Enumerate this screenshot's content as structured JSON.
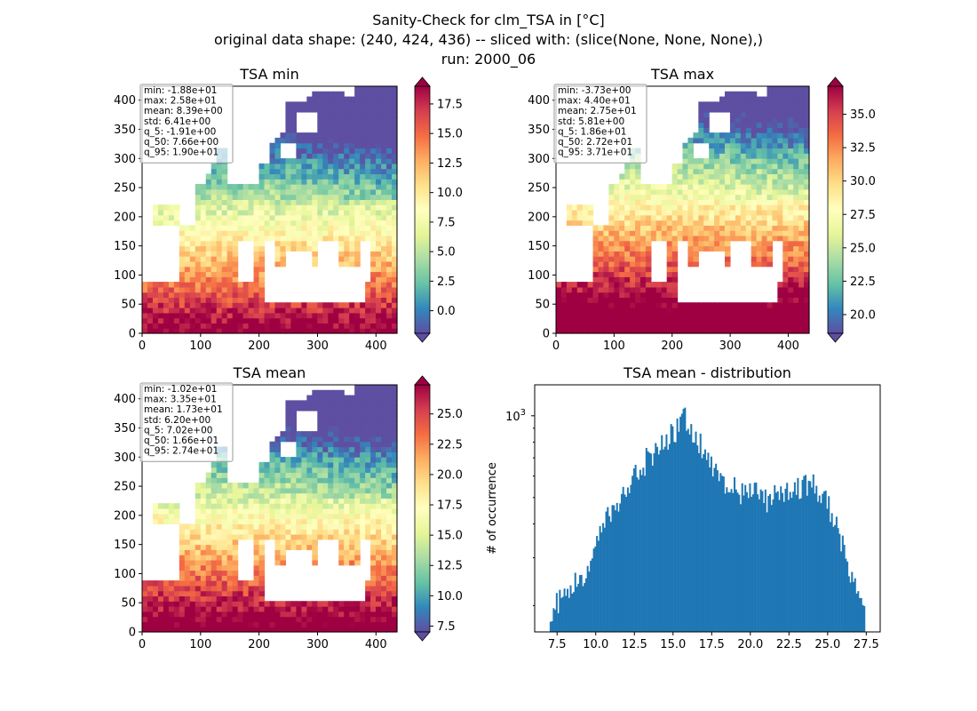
{
  "suptitle": {
    "line1": "Sanity-Check for clm_TSA in [°C]",
    "line2": "original data shape: (240, 424, 436) -- sliced with: (slice(None, None, None),)",
    "line3": "run: 2000_06"
  },
  "colors": {
    "histogram_bar": "#1f77b4",
    "colormap": "Spectral_r",
    "colormap_stops": [
      "#5e4fa2",
      "#3288bd",
      "#66c2a5",
      "#abdda4",
      "#e6f598",
      "#ffffbf",
      "#fee08b",
      "#fdae61",
      "#f46d43",
      "#d53e4f",
      "#9e0142"
    ],
    "masked": "#ffffff"
  },
  "chart_data": [
    {
      "type": "heatmap",
      "id": "tsa_min",
      "title": "TSA min",
      "xlim": [
        0,
        436
      ],
      "ylim": [
        0,
        424
      ],
      "xticks": [
        0,
        100,
        200,
        300,
        400
      ],
      "yticks": [
        0,
        50,
        100,
        150,
        200,
        250,
        300,
        350,
        400
      ],
      "colorbar": {
        "vmin": -1.91,
        "vmax": 19.0,
        "ticks": [
          0.0,
          2.5,
          5.0,
          7.5,
          10.0,
          12.5,
          15.0,
          17.5
        ],
        "tick_labels": [
          "0.0",
          "2.5",
          "5.0",
          "7.5",
          "10.0",
          "12.5",
          "15.0",
          "17.5"
        ],
        "extend": "both"
      },
      "stats": [
        "min: -1.88e+01",
        "max: 2.58e+01",
        "mean: 8.39e+00",
        "std: 6.41e+00",
        "q_5: -1.91e+00",
        "q_50: 7.66e+00",
        "q_95: 1.90e+01"
      ]
    },
    {
      "type": "heatmap",
      "id": "tsa_max",
      "title": "TSA max",
      "xlim": [
        0,
        436
      ],
      "ylim": [
        0,
        424
      ],
      "xticks": [
        0,
        100,
        200,
        300,
        400
      ],
      "yticks": [
        0,
        50,
        100,
        150,
        200,
        250,
        300,
        350,
        400
      ],
      "colorbar": {
        "vmin": 18.6,
        "vmax": 37.1,
        "ticks": [
          20.0,
          22.5,
          25.0,
          27.5,
          30.0,
          32.5,
          35.0
        ],
        "tick_labels": [
          "20.0",
          "22.5",
          "25.0",
          "27.5",
          "30.0",
          "32.5",
          "35.0"
        ],
        "extend": "both"
      },
      "stats": [
        "min: -3.73e+00",
        "max: 4.40e+01",
        "mean: 2.75e+01",
        "std: 5.81e+00",
        "q_5: 1.86e+01",
        "q_50: 2.72e+01",
        "q_95: 3.71e+01"
      ]
    },
    {
      "type": "heatmap",
      "id": "tsa_mean",
      "title": "TSA mean",
      "xlim": [
        0,
        436
      ],
      "ylim": [
        0,
        424
      ],
      "xticks": [
        0,
        100,
        200,
        300,
        400
      ],
      "yticks": [
        0,
        50,
        100,
        150,
        200,
        250,
        300,
        350,
        400
      ],
      "colorbar": {
        "vmin": 7.02,
        "vmax": 27.4,
        "ticks": [
          7.5,
          10.0,
          12.5,
          15.0,
          17.5,
          20.0,
          22.5,
          25.0
        ],
        "tick_labels": [
          "7.5",
          "10.0",
          "12.5",
          "15.0",
          "17.5",
          "20.0",
          "22.5",
          "25.0"
        ],
        "extend": "both"
      },
      "stats": [
        "min: -1.02e+01",
        "max: 3.35e+01",
        "mean: 1.73e+01",
        "std: 6.20e+00",
        "q_5: 7.02e+00",
        "q_50: 1.66e+01",
        "q_95: 2.74e+01"
      ]
    },
    {
      "type": "bar",
      "id": "tsa_mean_distribution",
      "title": "TSA mean - distribution",
      "ylabel": "# of occurrence",
      "xlabel": "",
      "yscale": "log",
      "ylim": [
        160,
        1300
      ],
      "xlim": [
        6.05,
        28.4
      ],
      "xticks": [
        7.5,
        10.0,
        12.5,
        15.0,
        17.5,
        20.0,
        22.5,
        25.0,
        27.5
      ],
      "xtick_labels": [
        "7.5",
        "10.0",
        "12.5",
        "15.0",
        "17.5",
        "20.0",
        "22.5",
        "25.0",
        "27.5"
      ],
      "ytick_labels": [
        "10^3"
      ],
      "bin_range": [
        7.02,
        27.4
      ],
      "bin_width": 0.1,
      "histogram_envelope": [
        [
          7.05,
          185
        ],
        [
          7.3,
          200
        ],
        [
          7.6,
          210
        ],
        [
          8.0,
          225
        ],
        [
          8.5,
          240
        ],
        [
          9.0,
          255
        ],
        [
          9.5,
          270
        ],
        [
          10.0,
          320
        ],
        [
          10.5,
          390
        ],
        [
          11.0,
          460
        ],
        [
          11.5,
          500
        ],
        [
          12.0,
          560
        ],
        [
          12.5,
          610
        ],
        [
          13.0,
          660
        ],
        [
          13.5,
          720
        ],
        [
          14.0,
          760
        ],
        [
          14.5,
          830
        ],
        [
          15.0,
          860
        ],
        [
          15.5,
          940
        ],
        [
          15.8,
          990
        ],
        [
          16.0,
          930
        ],
        [
          16.5,
          860
        ],
        [
          17.0,
          750
        ],
        [
          17.5,
          660
        ],
        [
          18.0,
          600
        ],
        [
          18.5,
          560
        ],
        [
          19.0,
          540
        ],
        [
          19.5,
          530
        ],
        [
          20.0,
          540
        ],
        [
          20.5,
          510
        ],
        [
          21.0,
          490
        ],
        [
          21.5,
          505
        ],
        [
          22.0,
          520
        ],
        [
          22.5,
          530
        ],
        [
          23.0,
          545
        ],
        [
          23.5,
          555
        ],
        [
          24.0,
          570
        ],
        [
          24.5,
          540
        ],
        [
          25.0,
          470
        ],
        [
          25.5,
          400
        ],
        [
          26.0,
          330
        ],
        [
          26.5,
          270
        ],
        [
          27.0,
          235
        ],
        [
          27.4,
          225
        ]
      ]
    }
  ]
}
